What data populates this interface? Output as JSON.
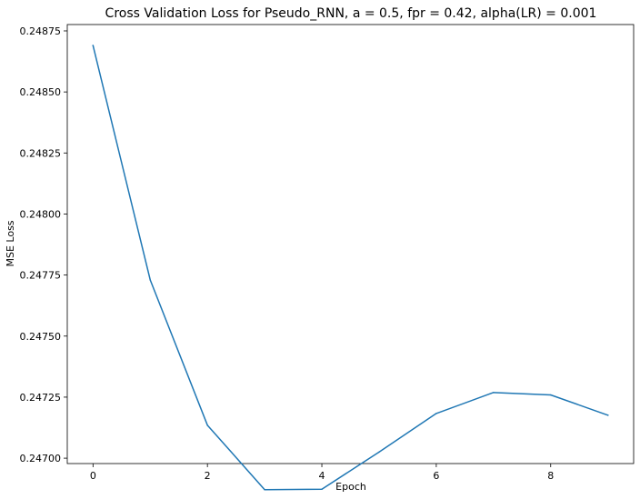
{
  "chart_data": {
    "type": "line",
    "title": "Cross Validation Loss for Pseudo_RNN, a = 0.5, fpr = 0.42, alpha(LR) = 0.001",
    "xlabel": "Epoch",
    "ylabel": "MSE Loss",
    "xlim": [
      -0.45,
      9.45
    ],
    "ylim": [
      0.246978,
      0.248776
    ],
    "x_ticks": [
      0,
      2,
      4,
      6,
      8
    ],
    "x_tick_labels": [
      "0",
      "2",
      "4",
      "6",
      "8"
    ],
    "y_ticks": [
      0.247,
      0.24725,
      0.2475,
      0.24775,
      0.248,
      0.24825,
      0.2485,
      0.24875
    ],
    "y_tick_labels": [
      "0.24700",
      "0.24725",
      "0.24750",
      "0.24775",
      "0.24800",
      "0.24825",
      "0.24850",
      "0.24875"
    ],
    "grid": false,
    "series": [
      {
        "color": "#1f77b4",
        "x": [
          0,
          1,
          2,
          3,
          4,
          5,
          6,
          7,
          8,
          9
        ],
        "y": [
          0.24869,
          0.24773,
          0.247135,
          0.246871,
          0.246873,
          0.247025,
          0.247183,
          0.247269,
          0.247259,
          0.247176
        ]
      }
    ]
  }
}
